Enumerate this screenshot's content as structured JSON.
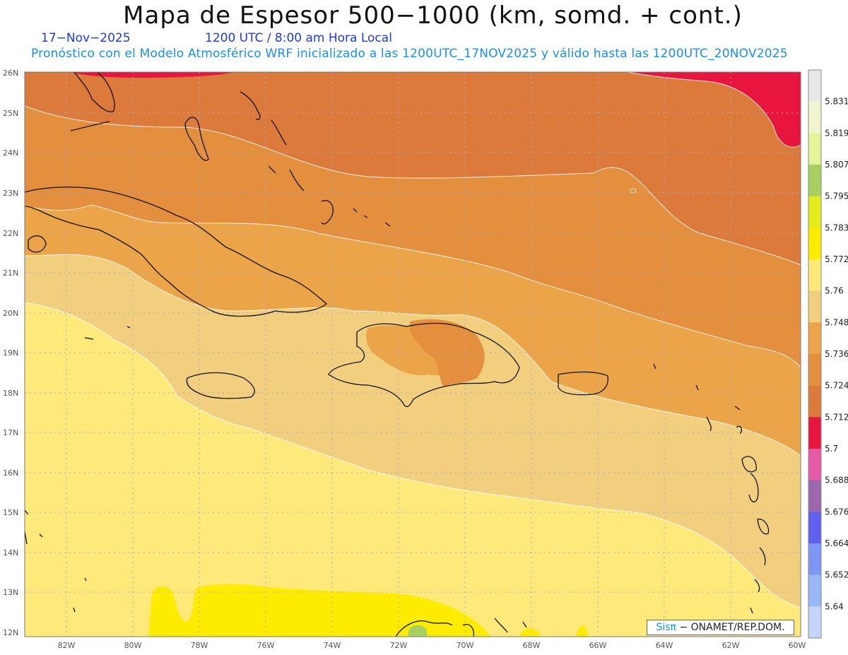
{
  "header": {
    "title": "Mapa de Espesor 500−1000 (km, somd. + cont.)",
    "date": "17−Nov−2025",
    "time": "1200 UTC / 8:00 am Hora Local",
    "description": "Pronóstico con el Modelo Atmosférico WRF inicializado a las 1200UTC_17NOV2025 y válido hasta las  1200UTC_20NOV2025"
  },
  "map": {
    "lat_labels": [
      "26N",
      "25N",
      "24N",
      "23N",
      "22N",
      "21N",
      "20N",
      "19N",
      "18N",
      "17N",
      "16N",
      "15N",
      "14N",
      "13N",
      "12N"
    ],
    "lon_labels": [
      "82W",
      "80W",
      "78W",
      "76W",
      "74W",
      "72W",
      "70W",
      "68W",
      "66W",
      "64W",
      "62W",
      "60W"
    ],
    "grid": true,
    "region": "Caribe / Antillas Mayores"
  },
  "colorbar": {
    "labels": [
      "5.831",
      "5.819",
      "5.807",
      "5.795",
      "5.783",
      "5.772",
      "5.76",
      "5.748",
      "5.736",
      "5.724",
      "5.712",
      "5.7",
      "5.688",
      "5.676",
      "5.664",
      "5.652",
      "5.64"
    ],
    "colors": [
      "#e8e8e8",
      "#f0f5d0",
      "#e2f59a",
      "#a8d060",
      "#e4ec1a",
      "#fdeb00",
      "#fee97a",
      "#f1cf7e",
      "#eba448",
      "#e48f3e",
      "#db7a3a",
      "#e8153e",
      "#e55aa6",
      "#9b68ad",
      "#6060ee",
      "#7e96f4",
      "#98b8f8",
      "#c4d4fb"
    ]
  },
  "credit": {
    "brand": "Sisπ",
    "org": "− ONAMET/REP.DOM."
  }
}
